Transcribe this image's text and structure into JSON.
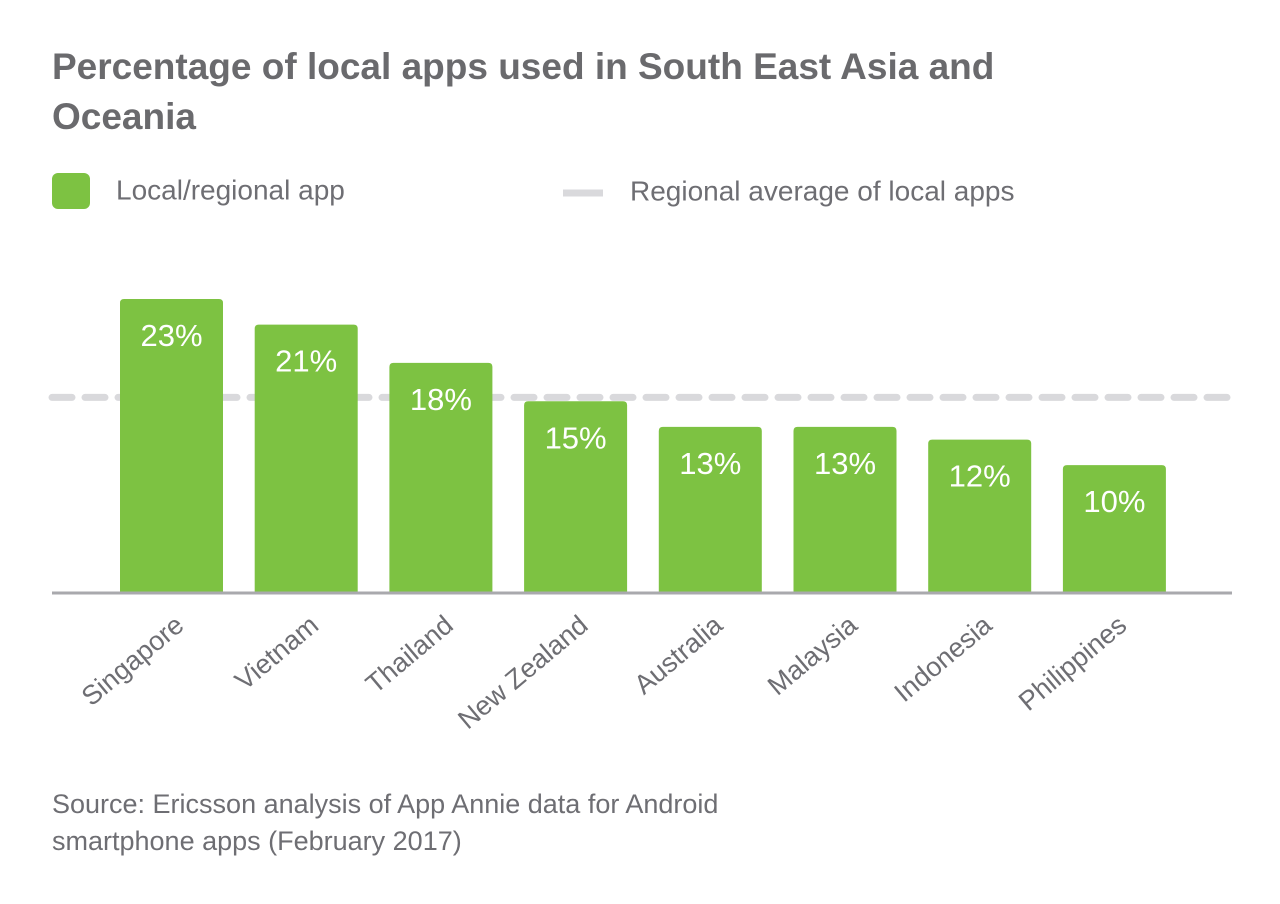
{
  "chart_data": {
    "type": "bar",
    "title": "Percentage of local apps used in South East Asia and Oceania",
    "categories": [
      "Singapore",
      "Vietnam",
      "Thailand",
      "New Zealand",
      "Australia",
      "Malaysia",
      "Indonesia",
      "Philippines"
    ],
    "series": [
      {
        "name": "Local/regional app",
        "color": "#7dc242",
        "values": [
          23,
          21,
          18,
          15,
          13,
          13,
          12,
          10
        ],
        "value_labels": [
          "23%",
          "21%",
          "18%",
          "15%",
          "13%",
          "13%",
          "12%",
          "10%"
        ]
      }
    ],
    "average": {
      "name": "Regional average of local apps",
      "value": 15.3,
      "color": "#d9d9dc"
    },
    "source": "Source: Ericsson analysis of App Annie data for Android smartphone apps (February 2017)"
  }
}
